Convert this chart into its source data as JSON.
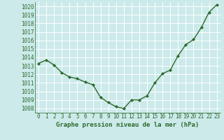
{
  "x": [
    0,
    1,
    2,
    3,
    4,
    5,
    6,
    7,
    8,
    9,
    10,
    11,
    12,
    13,
    14,
    15,
    16,
    17,
    18,
    19,
    20,
    21,
    22,
    23
  ],
  "y": [
    1013.3,
    1013.7,
    1013.1,
    1012.2,
    1011.7,
    1011.5,
    1011.1,
    1010.8,
    1009.3,
    1008.7,
    1008.2,
    1008.0,
    1009.0,
    1009.0,
    1009.5,
    1011.0,
    1012.1,
    1012.5,
    1014.2,
    1015.5,
    1016.1,
    1017.5,
    1019.3,
    1020.2
  ],
  "line_color": "#2d6a2d",
  "marker": "D",
  "marker_size": 2.2,
  "line_width": 1.0,
  "bg_color": "#cceaea",
  "grid_color": "#ffffff",
  "xlabel": "Graphe pression niveau de la mer (hPa)",
  "xlabel_fontsize": 6.5,
  "tick_fontsize": 5.5,
  "ylim": [
    1007.5,
    1020.5
  ],
  "yticks": [
    1008,
    1009,
    1010,
    1011,
    1012,
    1013,
    1014,
    1015,
    1016,
    1017,
    1018,
    1019,
    1020
  ],
  "xticks": [
    0,
    1,
    2,
    3,
    4,
    5,
    6,
    7,
    8,
    9,
    10,
    11,
    12,
    13,
    14,
    15,
    16,
    17,
    18,
    19,
    20,
    21,
    22,
    23
  ]
}
